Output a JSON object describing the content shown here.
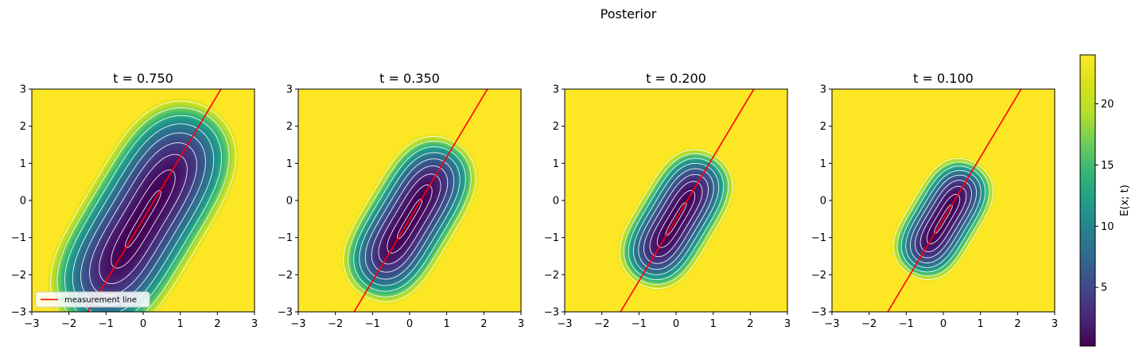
{
  "chart_data": {
    "type": "heatmap",
    "title": "Posterior",
    "colorbar": {
      "label": "E(x; t)",
      "ticks": [
        5,
        10,
        15,
        20
      ],
      "range": [
        0.2,
        24
      ]
    },
    "xlim": [
      -3,
      3
    ],
    "ylim": [
      -3,
      3
    ],
    "xticks": [
      -3,
      -2,
      -1,
      0,
      1,
      2,
      3
    ],
    "yticks": [
      -3,
      -2,
      -1,
      0,
      1,
      2,
      3
    ],
    "grid": false,
    "measurement_line": {
      "label": "measurement line",
      "color": "#ff0000",
      "slope": 1.67,
      "intercept": -0.5
    },
    "legend_position": "lower left of first panel",
    "panels": [
      {
        "title": "t = 0.750",
        "t": 0.75,
        "show_legend": true
      },
      {
        "title": "t = 0.350",
        "t": 0.35,
        "show_legend": false
      },
      {
        "title": "t = 0.200",
        "t": 0.2,
        "show_legend": false
      },
      {
        "title": "t = 0.100",
        "t": 0.1,
        "show_legend": false
      }
    ]
  }
}
